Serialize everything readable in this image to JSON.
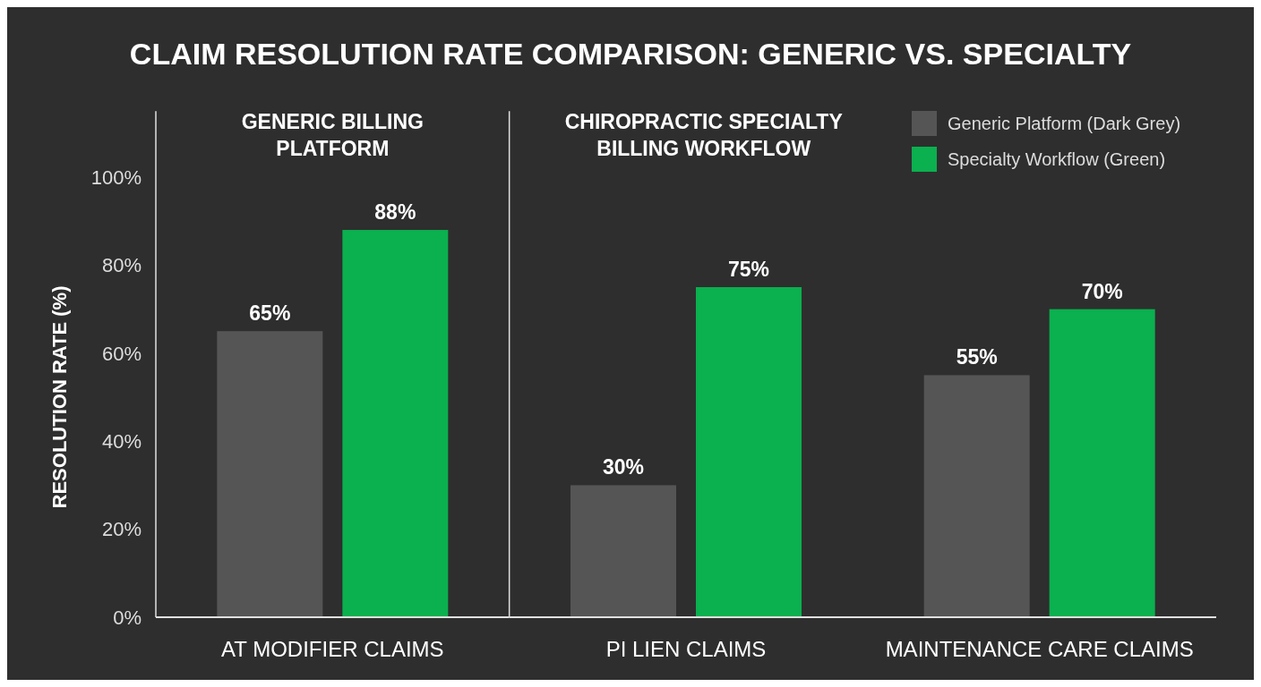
{
  "chart_data": [
    {
      "type": "bar",
      "title": "CLAIM RESOLUTION RATE COMPARISON: GENERIC VS. SPECIALTY",
      "subtitle": "GENERIC BILLING PLATFORM",
      "ylabel": "RESOLUTION RATE (%)",
      "categories": [
        "AT MODIFIER CLAIMS"
      ],
      "series": [
        {
          "color": "#555555",
          "values": [
            65
          ]
        },
        {
          "color": "#0bb04f",
          "values": [
            88
          ]
        }
      ],
      "ylim": [
        0,
        115
      ],
      "yticks": [
        {
          "value": 0,
          "label": "0%"
        },
        {
          "value": 20,
          "label": "20%"
        },
        {
          "value": 40,
          "label": "40%"
        },
        {
          "value": 60,
          "label": "60%"
        },
        {
          "value": 80,
          "label": "80%"
        },
        {
          "value": 100,
          "label": "100%"
        }
      ],
      "grid": false,
      "legend": false,
      "value_labels": [
        [
          "65%"
        ],
        [
          "88%"
        ]
      ]
    },
    {
      "type": "bar",
      "subtitle": "CHIROPRACTIC SPECIALTY BILLING WORKFLOW",
      "categories": [
        "PI LIEN CLAIMS",
        "MAINTENANCE CARE CLAIMS"
      ],
      "series": [
        {
          "name": "Generic Platform (Dark Grey)",
          "color": "#555555",
          "values": [
            30,
            55
          ]
        },
        {
          "name": "Specialty Workflow (Green)",
          "color": "#0bb04f",
          "values": [
            75,
            70
          ]
        }
      ],
      "ylim": [
        0,
        115
      ],
      "tick_labels": "x",
      "grid": false,
      "legend": "top right",
      "value_labels": [
        [
          "30%",
          "55%"
        ],
        [
          "75%",
          "70%"
        ]
      ]
    }
  ]
}
